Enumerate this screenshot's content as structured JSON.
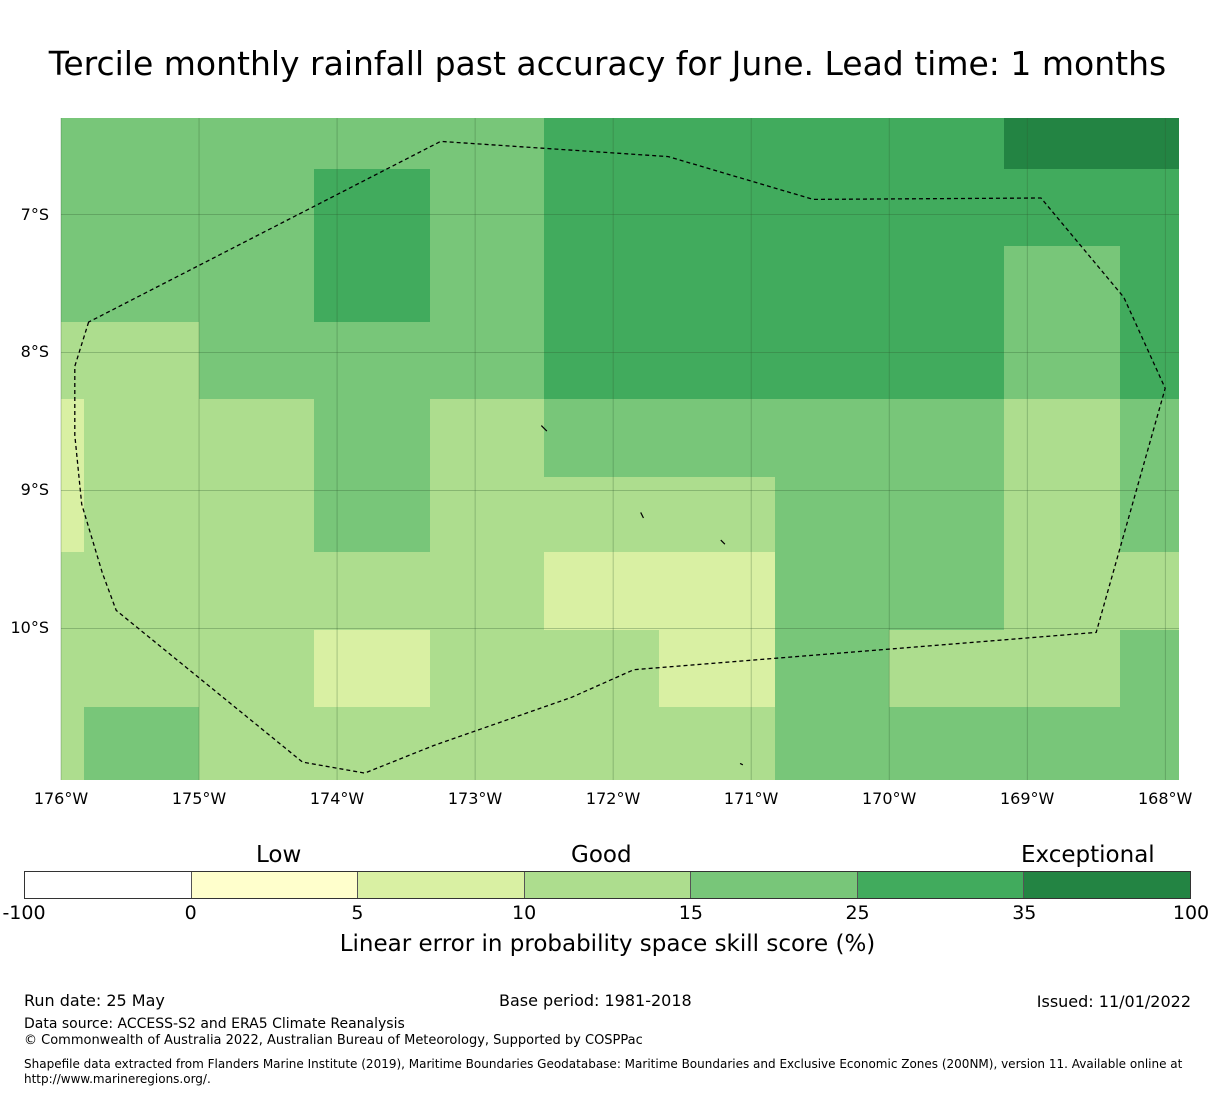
{
  "title": "Tercile monthly rainfall past accuracy for June. Lead time: 1 months",
  "map": {
    "lon_range": [
      -176,
      -167.9
    ],
    "lat_range": [
      -11.1,
      -6.3
    ],
    "lat_ticks": [
      {
        "value": -7,
        "label": "7°S"
      },
      {
        "value": -8,
        "label": "8°S"
      },
      {
        "value": -9,
        "label": "9°S"
      },
      {
        "value": -10,
        "label": "10°S"
      }
    ],
    "lon_ticks": [
      {
        "value": -176,
        "label": "176°W"
      },
      {
        "value": -175,
        "label": "175°W"
      },
      {
        "value": -174,
        "label": "174°W"
      },
      {
        "value": -173,
        "label": "173°W"
      },
      {
        "value": -172,
        "label": "172°W"
      },
      {
        "value": -171,
        "label": "171°W"
      },
      {
        "value": -170,
        "label": "170°W"
      },
      {
        "value": -169,
        "label": "169°W"
      },
      {
        "value": -168,
        "label": "168°W"
      }
    ],
    "grid_lon_edges": [
      -176,
      -175.83,
      -175,
      -174.17,
      -173.33,
      -172.5,
      -171.67,
      -170.83,
      -170,
      -169.17,
      -168.33,
      -167.9
    ],
    "grid_lat_edges": [
      -6.3,
      -6.67,
      -7.23,
      -7.78,
      -8.34,
      -8.9,
      -9.45,
      -10.01,
      -10.57,
      -11.1
    ],
    "cell_classes": [
      [
        4,
        4,
        4,
        4,
        4,
        5,
        5,
        5,
        5,
        6,
        6
      ],
      [
        4,
        4,
        4,
        5,
        4,
        5,
        5,
        5,
        5,
        5,
        5
      ],
      [
        4,
        4,
        4,
        5,
        4,
        5,
        5,
        5,
        5,
        4,
        5
      ],
      [
        3,
        3,
        4,
        4,
        4,
        5,
        5,
        5,
        5,
        4,
        5
      ],
      [
        2,
        3,
        3,
        4,
        3,
        4,
        4,
        4,
        4,
        3,
        4
      ],
      [
        2,
        3,
        3,
        4,
        3,
        3,
        3,
        4,
        4,
        3,
        4
      ],
      [
        3,
        3,
        3,
        3,
        3,
        2,
        2,
        4,
        4,
        3,
        3
      ],
      [
        3,
        3,
        3,
        2,
        3,
        3,
        2,
        4,
        3,
        3,
        4
      ],
      [
        3,
        4,
        3,
        3,
        3,
        3,
        3,
        4,
        4,
        4,
        4
      ]
    ],
    "eez_boundary": [
      [
        -175.8,
        -7.78
      ],
      [
        -175.9,
        -8.1
      ],
      [
        -175.9,
        -8.6
      ],
      [
        -175.85,
        -9.1
      ],
      [
        -175.7,
        -9.6
      ],
      [
        -175.6,
        -9.87
      ],
      [
        -174.25,
        -10.97
      ],
      [
        -173.8,
        -11.05
      ],
      [
        -173.3,
        -10.85
      ],
      [
        -172.3,
        -10.5
      ],
      [
        -171.85,
        -10.3
      ],
      [
        -168.5,
        -10.03
      ],
      [
        -168.0,
        -8.26
      ],
      [
        -168.3,
        -7.6
      ],
      [
        -168.9,
        -6.88
      ],
      [
        -170.55,
        -6.89
      ],
      [
        -171.6,
        -6.58
      ],
      [
        -173.25,
        -6.47
      ],
      [
        -175.8,
        -7.78
      ]
    ],
    "islands": [
      [
        [
          -172.52,
          -8.53
        ],
        [
          -172.48,
          -8.57
        ]
      ],
      [
        [
          -171.8,
          -9.16
        ],
        [
          -171.78,
          -9.2
        ]
      ],
      [
        [
          -171.22,
          -9.36
        ],
        [
          -171.19,
          -9.39
        ]
      ],
      [
        [
          -171.08,
          -10.98
        ],
        [
          -171.06,
          -10.99
        ]
      ]
    ]
  },
  "colorbar": {
    "headings": {
      "low": "Low",
      "good": "Good",
      "exceptional": "Exceptional"
    },
    "bins": [
      {
        "from": -100,
        "to": 0,
        "color": "#ffffff"
      },
      {
        "from": 0,
        "to": 5,
        "color": "#ffffcc"
      },
      {
        "from": 5,
        "to": 10,
        "color": "#d9f0a3"
      },
      {
        "from": 10,
        "to": 15,
        "color": "#addd8e"
      },
      {
        "from": 15,
        "to": 25,
        "color": "#78c679"
      },
      {
        "from": 25,
        "to": 35,
        "color": "#41ab5d"
      },
      {
        "from": 35,
        "to": 100,
        "color": "#238443"
      }
    ],
    "tick_labels": [
      "-100",
      "0",
      "5",
      "10",
      "15",
      "25",
      "35",
      "100"
    ],
    "label": "Linear error in probability space skill score (%)"
  },
  "footer": {
    "run_date": "Run date: 25 May",
    "base_period": "Base period: 1981-2018",
    "issued": "Issued: 11/01/2022",
    "data_source": "Data source: ACCESS-S2 and ERA5 Climate Reanalysis",
    "copyright": "© Commonwealth of Australia 2022, Australian Bureau of Meteorology, Supported by COSPPac",
    "shapefile": "Shapefile data extracted from Flanders Marine Institute (2019), Maritime Boundaries Geodatabase: Maritime Boundaries and Exclusive Economic Zones (200NM), version 11. Available online at http://www.marineregions.org/."
  }
}
